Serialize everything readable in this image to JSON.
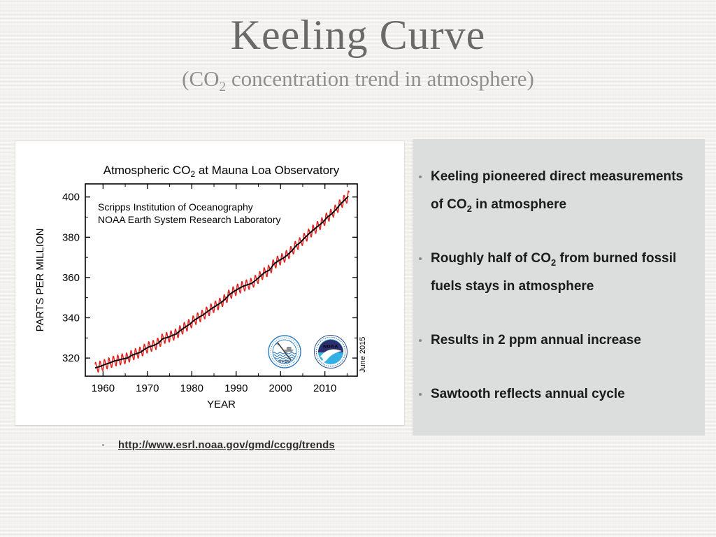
{
  "slide": {
    "title": "Keeling Curve",
    "subtitle": {
      "pre": "(CO",
      "sub": "2",
      "post": " concentration trend in atmosphere)"
    }
  },
  "panel": {
    "bullets": [
      {
        "parts": [
          {
            "t": "Keeling pioneered direct measurements of CO"
          },
          {
            "t": "2",
            "sub": true
          },
          {
            "t": " in atmosphere"
          }
        ]
      },
      {
        "parts": [
          {
            "t": "Roughly half of CO"
          },
          {
            "t": "2",
            "sub": true
          },
          {
            "t": " from burned fossil fuels stays in atmosphere"
          }
        ]
      },
      {
        "parts": [
          {
            "t": "Results in 2 ppm annual increase"
          }
        ]
      },
      {
        "parts": [
          {
            "t": "Sawtooth reflects annual cycle"
          }
        ]
      }
    ]
  },
  "footer": {
    "link": "http://www.esrl.noaa.gov/gmd/ccgg/trends"
  },
  "chart_data": {
    "type": "line",
    "title": {
      "pre": "Atmospheric CO",
      "sub": "2",
      "post": " at Mauna Loa Observatory"
    },
    "annotation_lines": [
      "Scripps Institution of Oceanography",
      "NOAA Earth System Research Laboratory"
    ],
    "xlabel": "YEAR",
    "ylabel": "PARTS PER MILLION",
    "date_stamp": "June 2015",
    "xlim": [
      1956.0,
      2017.3
    ],
    "ylim": [
      311.0,
      406.5
    ],
    "x_ticks": [
      1960,
      1970,
      1980,
      1990,
      2000,
      2010
    ],
    "y_ticks": [
      320,
      340,
      360,
      380,
      400
    ],
    "x_minor_step": 5,
    "y_minor_step": 10,
    "grid": false,
    "series": [
      {
        "name": "monthly mean CO2 (seasonal sawtooth)",
        "color": "#e02421"
      },
      {
        "name": "deseasonalized annual trend",
        "color": "#000000"
      }
    ],
    "seasonal_amplitude_ppm": 2.8,
    "data_start_year": 1958.2,
    "data_end_year": 2015.45,
    "annual_start_year": 1958,
    "annual_mean_ppm": [
      315.3,
      316.0,
      316.9,
      317.6,
      318.5,
      319.0,
      319.6,
      320.0,
      321.4,
      322.2,
      323.0,
      324.6,
      325.7,
      326.3,
      327.5,
      329.7,
      330.2,
      331.1,
      332.0,
      333.8,
      335.4,
      336.8,
      338.7,
      340.1,
      341.4,
      343.0,
      344.6,
      346.0,
      347.4,
      349.2,
      351.6,
      353.1,
      354.4,
      355.6,
      356.4,
      357.1,
      358.8,
      360.8,
      362.6,
      363.7,
      366.7,
      368.3,
      369.5,
      371.1,
      373.2,
      375.8,
      377.5,
      379.8,
      381.9,
      383.8,
      385.6,
      387.4,
      389.9,
      391.6,
      393.8,
      396.5,
      398.6,
      400.8
    ],
    "logos": {
      "noaa_label": "NOAA",
      "scripps_caption": "UCSD"
    }
  },
  "colors": {
    "slide_bg": "#f3f2ef",
    "panel_bg": "#dcdedd",
    "title_gray": "#6a6a68",
    "subtitle_gray": "#8f8f8b",
    "bullet_text": "#1b1b1b",
    "red_line": "#e02421",
    "trend_line": "#000000",
    "noaa_navy": "#2b2f6e",
    "noaa_cyan": "#33b1e4",
    "scripps_blue": "#2c7fc4"
  }
}
